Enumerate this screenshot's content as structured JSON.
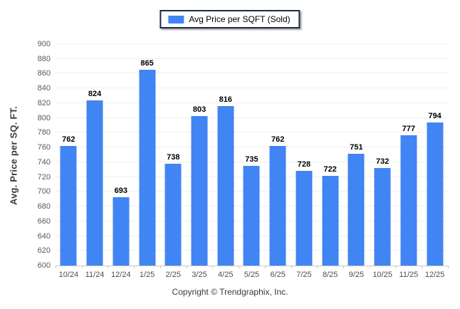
{
  "legend": {
    "label": "Avg Price per SQFT (Sold)"
  },
  "footer": {
    "copyright": "Copyright © Trendgraphix, Inc."
  },
  "colors": {
    "bar": "#4184F3",
    "legend_border": "#1c2b4a",
    "gridline": "#efefef",
    "axis": "#c9c9c9"
  },
  "chart_data": {
    "type": "bar",
    "title": "",
    "legend_entries": [
      "Avg Price per SQFT (Sold)"
    ],
    "legend_position": "top-center",
    "categories": [
      "10/24",
      "11/24",
      "12/24",
      "1/25",
      "2/25",
      "3/25",
      "4/25",
      "5/25",
      "6/25",
      "7/25",
      "8/25",
      "9/25",
      "10/25",
      "11/25",
      "12/25"
    ],
    "values": [
      762,
      824,
      693,
      865,
      738,
      803,
      816,
      735,
      762,
      728,
      722,
      751,
      732,
      777,
      794
    ],
    "xlabel": "",
    "ylabel": "Avg. Price per SQ. FT.",
    "ylim": [
      600,
      900
    ],
    "ytick_step": 20,
    "grid": true,
    "bar_color": "#4184F3"
  }
}
